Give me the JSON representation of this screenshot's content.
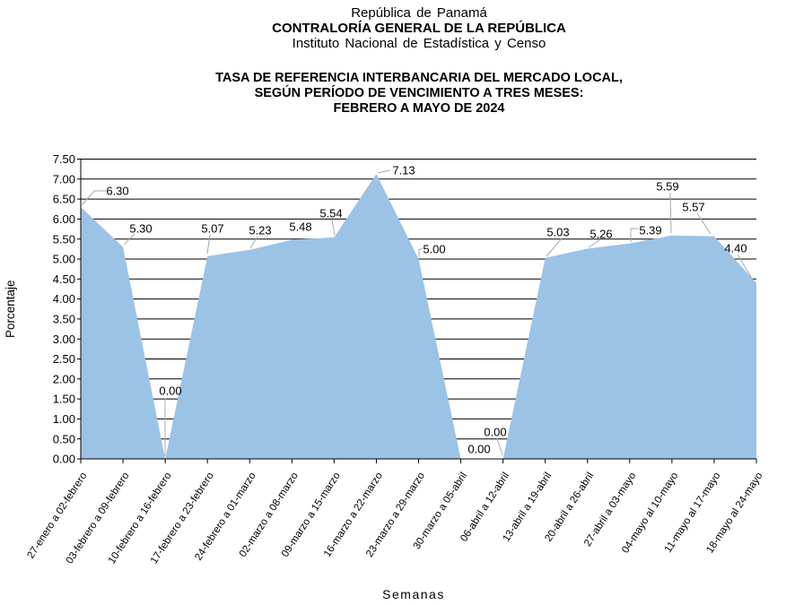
{
  "header": {
    "line1": "República de Panamá",
    "line2": "CONTRALORÍA GENERAL DE LA REPÚBLICA",
    "line3": "Instituto Nacional de Estadística y Censo"
  },
  "chart_title": {
    "line1": "TASA DE REFERENCIA INTERBANCARIA DEL MERCADO LOCAL,",
    "line2": "SEGÚN PERÍODO DE VENCIMIENTO A TRES MESES:",
    "line3": "FEBRERO A MAYO DE 2024"
  },
  "chart_data": {
    "type": "area",
    "title": "TASA DE REFERENCIA INTERBANCARIA DEL MERCADO LOCAL, SEGÚN PERÍODO DE VENCIMIENTO A TRES MESES: FEBRERO A MAYO DE 2024",
    "categories": [
      "27-enero a 02-febrero",
      "03-febrero a 09-febrero",
      "10-febrero a 16-febrero",
      "17-febrero a 23-febrero",
      "24-febrero a 01-marzo",
      "02-marzo a 08-marzo",
      "09-marzo a 15-marzo",
      "16-marzo a 22-marzo",
      "23-marzo a 29-marzo",
      "30-marzo a 05-abril",
      "06-abril a 12-abril",
      "13-abril a 19-abril",
      "20-abril a 26-abril",
      "27-abril a 03-mayo",
      "04-mayo al 10-mayo",
      "11-mayo al 17-mayo",
      "18-mayo al 24-mayo"
    ],
    "values": [
      6.3,
      5.3,
      0.0,
      5.07,
      5.23,
      5.48,
      5.54,
      7.13,
      5.0,
      0.0,
      0.0,
      5.03,
      5.26,
      5.39,
      5.59,
      5.57,
      4.4
    ],
    "xlabel": "Semanas",
    "ylabel": "Porcentaje",
    "ylim": [
      0,
      7.5
    ],
    "ytick_step": 0.5,
    "grid": true,
    "legend": "none",
    "data_labels": true,
    "colors": {
      "area": "#9BC3E6",
      "gridline": "#000000",
      "axis": "#000000",
      "leader": "#A9A9A9",
      "text": "#000000"
    }
  }
}
